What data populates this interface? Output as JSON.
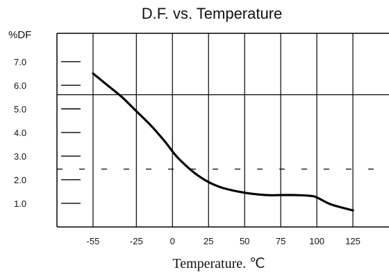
{
  "chart_data": {
    "type": "line",
    "title": "D.F. vs. Temperature",
    "ylabel": "%DF",
    "xlabel": "Temperature. ℃",
    "x_ticks": [
      "-55",
      "-25",
      "0",
      "25",
      "50",
      "75",
      "100",
      "125"
    ],
    "y_ticks": [
      "7.0",
      "6.0",
      "5.0",
      "4.0",
      "3.0",
      "2.0",
      "1.0"
    ],
    "xlim": [
      -80,
      150
    ],
    "ylim": [
      0,
      8.2
    ],
    "grid": true,
    "series": [
      {
        "x": [
          -55,
          -45,
          -35,
          -25,
          -15,
          -5,
          0,
          5,
          15,
          25,
          35,
          50,
          65,
          75,
          85,
          95,
          100,
          110,
          125
        ],
        "values": [
          6.5,
          6.0,
          5.5,
          4.9,
          4.3,
          3.6,
          3.2,
          2.85,
          2.3,
          1.9,
          1.65,
          1.45,
          1.35,
          1.35,
          1.35,
          1.32,
          1.25,
          0.95,
          0.7
        ]
      }
    ],
    "reference_lines": [
      {
        "y": 5.6,
        "style": "solid"
      },
      {
        "y": 2.45,
        "style": "dashed"
      }
    ],
    "colors": {
      "line": "#000000",
      "grid": "#000000"
    }
  }
}
